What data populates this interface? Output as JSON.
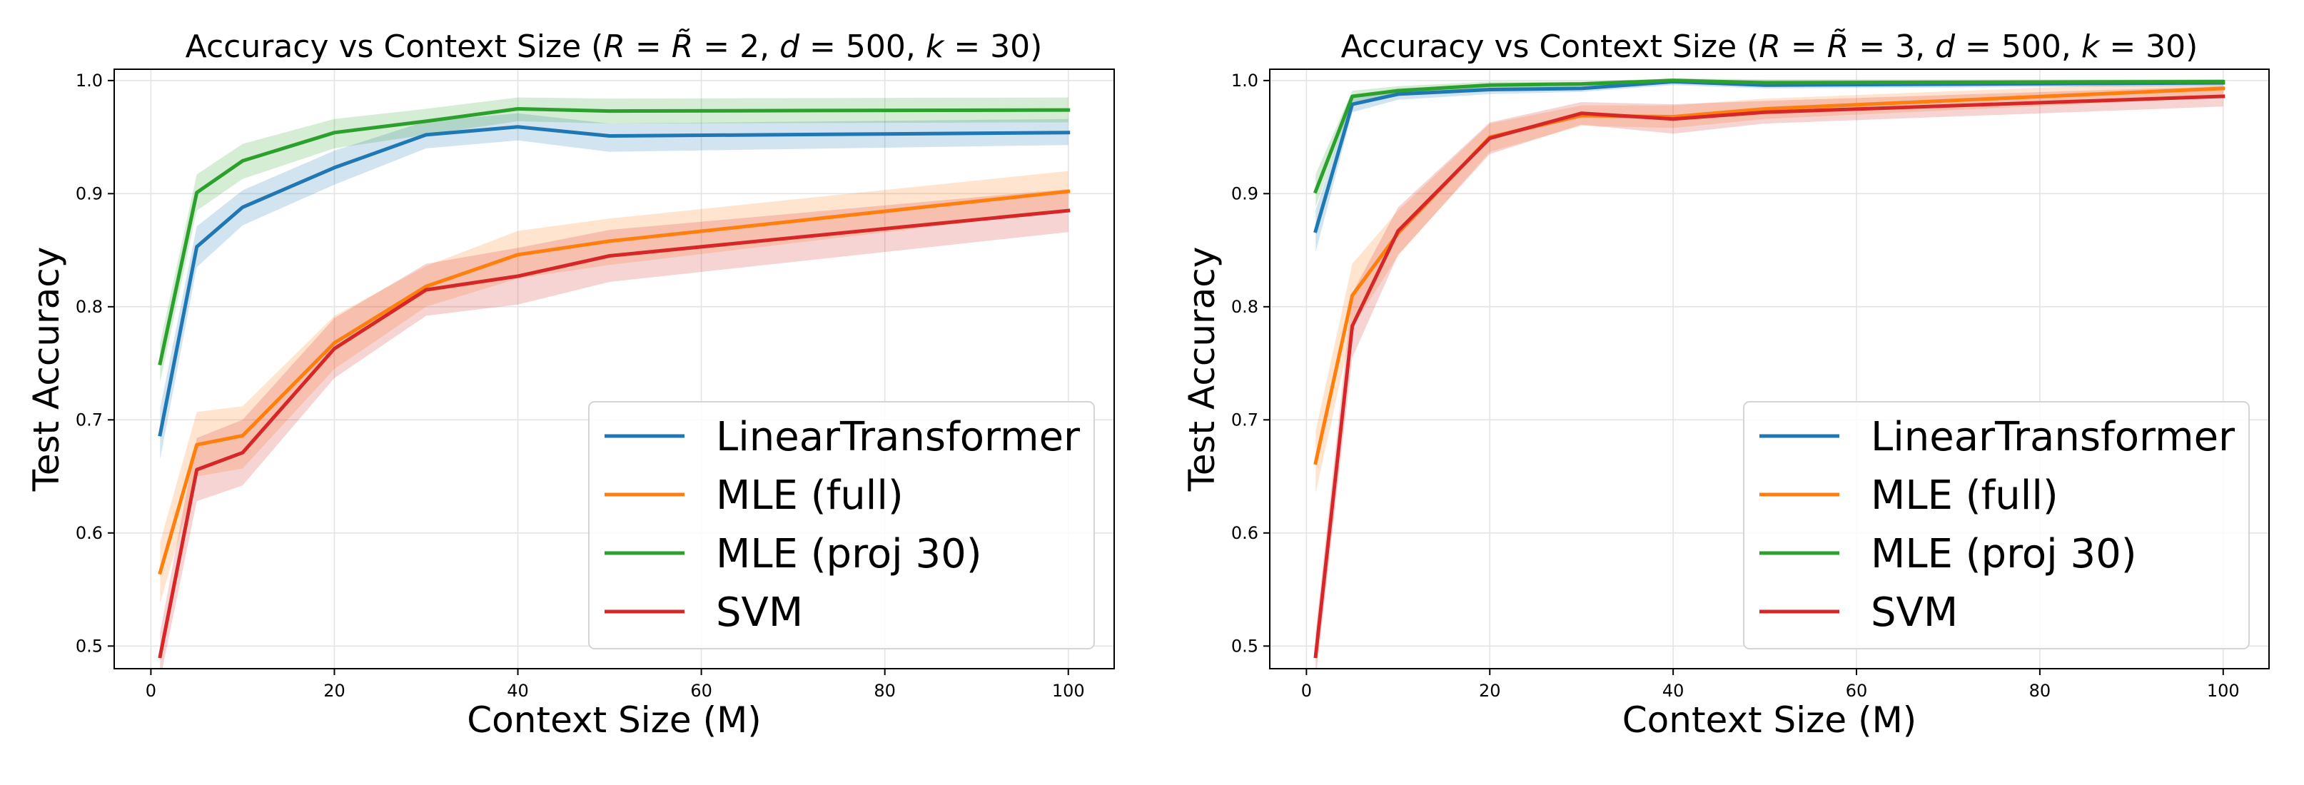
{
  "chart_data": [
    {
      "type": "line",
      "title_parts": [
        {
          "text": "Accuracy vs Context Size (",
          "style": "normal"
        },
        {
          "text": "R",
          "style": "italic"
        },
        {
          "text": " = ",
          "style": "normal"
        },
        {
          "text": "R̃",
          "style": "italic"
        },
        {
          "text": " = 2, ",
          "style": "normal"
        },
        {
          "text": "d",
          "style": "italic"
        },
        {
          "text": " = 500, ",
          "style": "normal"
        },
        {
          "text": "k",
          "style": "italic"
        },
        {
          "text": " = 30)",
          "style": "normal"
        }
      ],
      "xlabel": "Context Size (M)",
      "ylabel": "Test Accuracy",
      "xlim": [
        -4,
        105
      ],
      "ylim": [
        0.48,
        1.01
      ],
      "xticks": [
        0,
        20,
        40,
        60,
        80,
        100
      ],
      "yticks": [
        0.5,
        0.6,
        0.7,
        0.8,
        0.9,
        1.0
      ],
      "grid": true,
      "legend_position": "lower right",
      "x": [
        1,
        5,
        10,
        20,
        30,
        40,
        50,
        100
      ],
      "series": [
        {
          "name": "LinearTransformer",
          "color": "#1f77b4",
          "values": [
            0.687,
            0.853,
            0.888,
            0.923,
            0.952,
            0.959,
            0.951,
            0.954
          ],
          "lower": [
            0.665,
            0.835,
            0.872,
            0.908,
            0.94,
            0.947,
            0.937,
            0.943
          ],
          "upper": [
            0.71,
            0.871,
            0.903,
            0.938,
            0.964,
            0.971,
            0.962,
            0.966
          ]
        },
        {
          "name": "MLE (full)",
          "color": "#ff7f0e",
          "values": [
            0.565,
            0.678,
            0.686,
            0.768,
            0.818,
            0.846,
            0.858,
            0.902
          ],
          "lower": [
            0.538,
            0.65,
            0.657,
            0.745,
            0.8,
            0.825,
            0.837,
            0.885
          ],
          "upper": [
            0.592,
            0.707,
            0.712,
            0.792,
            0.836,
            0.867,
            0.878,
            0.92
          ]
        },
        {
          "name": "MLE (proj 30)",
          "color": "#2ca02c",
          "values": [
            0.75,
            0.901,
            0.929,
            0.954,
            0.964,
            0.975,
            0.973,
            0.974
          ],
          "lower": [
            0.733,
            0.885,
            0.913,
            0.94,
            0.952,
            0.964,
            0.962,
            0.963
          ],
          "upper": [
            0.768,
            0.917,
            0.944,
            0.966,
            0.975,
            0.985,
            0.984,
            0.985
          ]
        },
        {
          "name": "SVM",
          "color": "#d62728",
          "values": [
            0.491,
            0.656,
            0.671,
            0.763,
            0.815,
            0.827,
            0.845,
            0.885
          ],
          "lower": [
            0.47,
            0.628,
            0.642,
            0.737,
            0.792,
            0.802,
            0.822,
            0.866
          ],
          "upper": [
            0.512,
            0.684,
            0.7,
            0.79,
            0.838,
            0.852,
            0.868,
            0.904
          ]
        }
      ]
    },
    {
      "type": "line",
      "title_parts": [
        {
          "text": "Accuracy vs Context Size (",
          "style": "normal"
        },
        {
          "text": "R",
          "style": "italic"
        },
        {
          "text": " = ",
          "style": "normal"
        },
        {
          "text": "R̃",
          "style": "italic"
        },
        {
          "text": " = 3, ",
          "style": "normal"
        },
        {
          "text": "d",
          "style": "italic"
        },
        {
          "text": " = 500, ",
          "style": "normal"
        },
        {
          "text": "k",
          "style": "italic"
        },
        {
          "text": " = 30)",
          "style": "normal"
        }
      ],
      "xlabel": "Context Size (M)",
      "ylabel": "Test Accuracy",
      "xlim": [
        -4,
        105
      ],
      "ylim": [
        0.48,
        1.01
      ],
      "xticks": [
        0,
        20,
        40,
        60,
        80,
        100
      ],
      "yticks": [
        0.5,
        0.6,
        0.7,
        0.8,
        0.9,
        1.0
      ],
      "grid": true,
      "legend_position": "lower right",
      "x": [
        1,
        5,
        10,
        20,
        30,
        40,
        50,
        100
      ],
      "series": [
        {
          "name": "LinearTransformer",
          "color": "#1f77b4",
          "values": [
            0.867,
            0.979,
            0.988,
            0.992,
            0.993,
            0.999,
            0.996,
            0.998
          ],
          "lower": [
            0.848,
            0.972,
            0.983,
            0.988,
            0.99,
            0.996,
            0.993,
            0.995
          ],
          "upper": [
            0.885,
            0.986,
            0.993,
            0.996,
            0.996,
            1.002,
            0.999,
            1.001
          ]
        },
        {
          "name": "MLE (full)",
          "color": "#ff7f0e",
          "values": [
            0.662,
            0.81,
            0.865,
            0.95,
            0.969,
            0.968,
            0.975,
            0.993
          ],
          "lower": [
            0.635,
            0.782,
            0.845,
            0.937,
            0.96,
            0.958,
            0.966,
            0.985
          ],
          "upper": [
            0.69,
            0.838,
            0.885,
            0.962,
            0.978,
            0.978,
            0.984,
            1.0
          ]
        },
        {
          "name": "MLE (proj 30)",
          "color": "#2ca02c",
          "values": [
            0.902,
            0.986,
            0.991,
            0.996,
            0.997,
            1.0,
            0.998,
            0.999
          ],
          "lower": [
            0.888,
            0.981,
            0.987,
            0.993,
            0.995,
            0.998,
            0.995,
            0.997
          ],
          "upper": [
            0.917,
            0.991,
            0.995,
            0.999,
            0.999,
            1.002,
            1.001,
            1.001
          ]
        },
        {
          "name": "SVM",
          "color": "#d62728",
          "values": [
            0.491,
            0.783,
            0.867,
            0.949,
            0.971,
            0.966,
            0.972,
            0.986
          ],
          "lower": [
            0.47,
            0.755,
            0.846,
            0.935,
            0.961,
            0.953,
            0.962,
            0.977
          ],
          "upper": [
            0.512,
            0.812,
            0.888,
            0.963,
            0.981,
            0.979,
            0.982,
            0.995
          ]
        }
      ]
    }
  ]
}
